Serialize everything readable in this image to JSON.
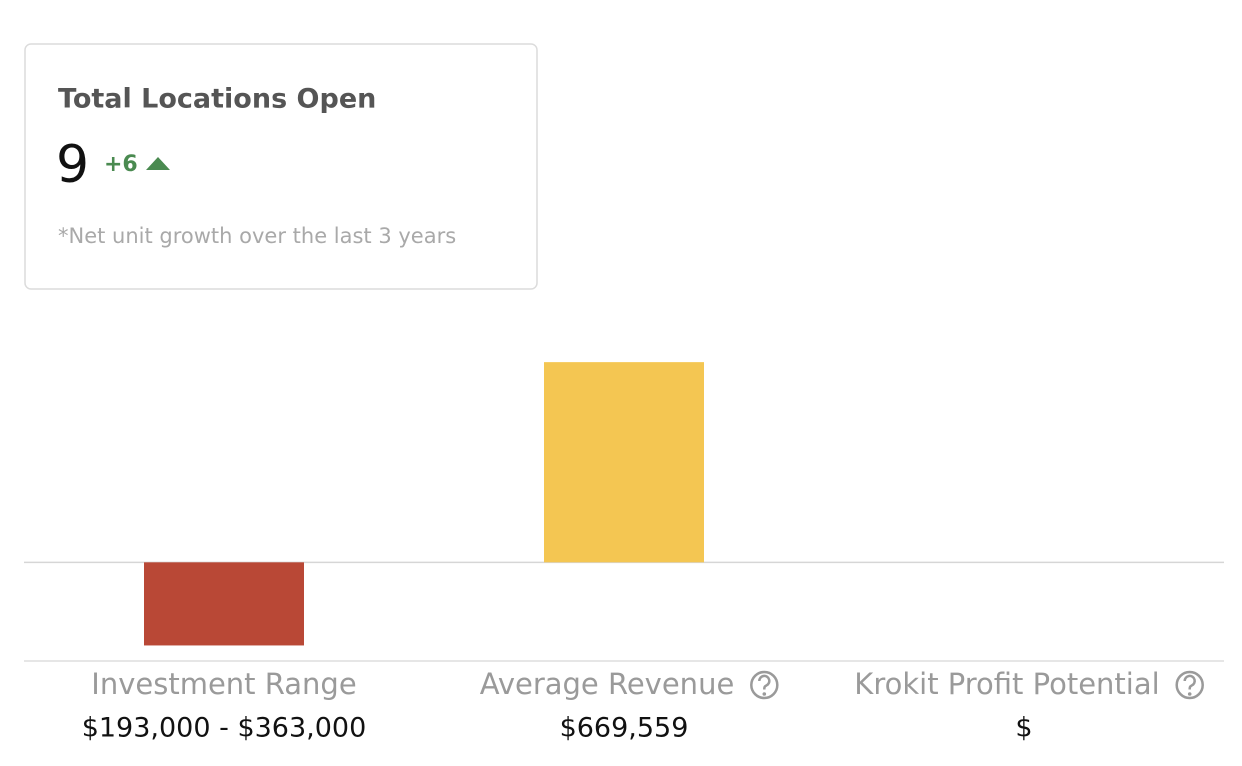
{
  "card": {
    "title": "Total Locations Open",
    "value": "9",
    "delta": "+6",
    "note": "*Net unit growth over the last 3 years"
  },
  "chart_data": {
    "type": "bar",
    "categories": [
      "Investment Range",
      "Average Revenue",
      "Krokit Profit Potential"
    ],
    "values": [
      -278000,
      669559,
      null
    ],
    "value_labels": [
      "$193,000 - $363,000",
      "$669,559",
      "$"
    ],
    "colors": [
      "#b94836",
      "#f4c652",
      "#f4c652"
    ],
    "ylim": [
      -330000,
      670000
    ]
  }
}
